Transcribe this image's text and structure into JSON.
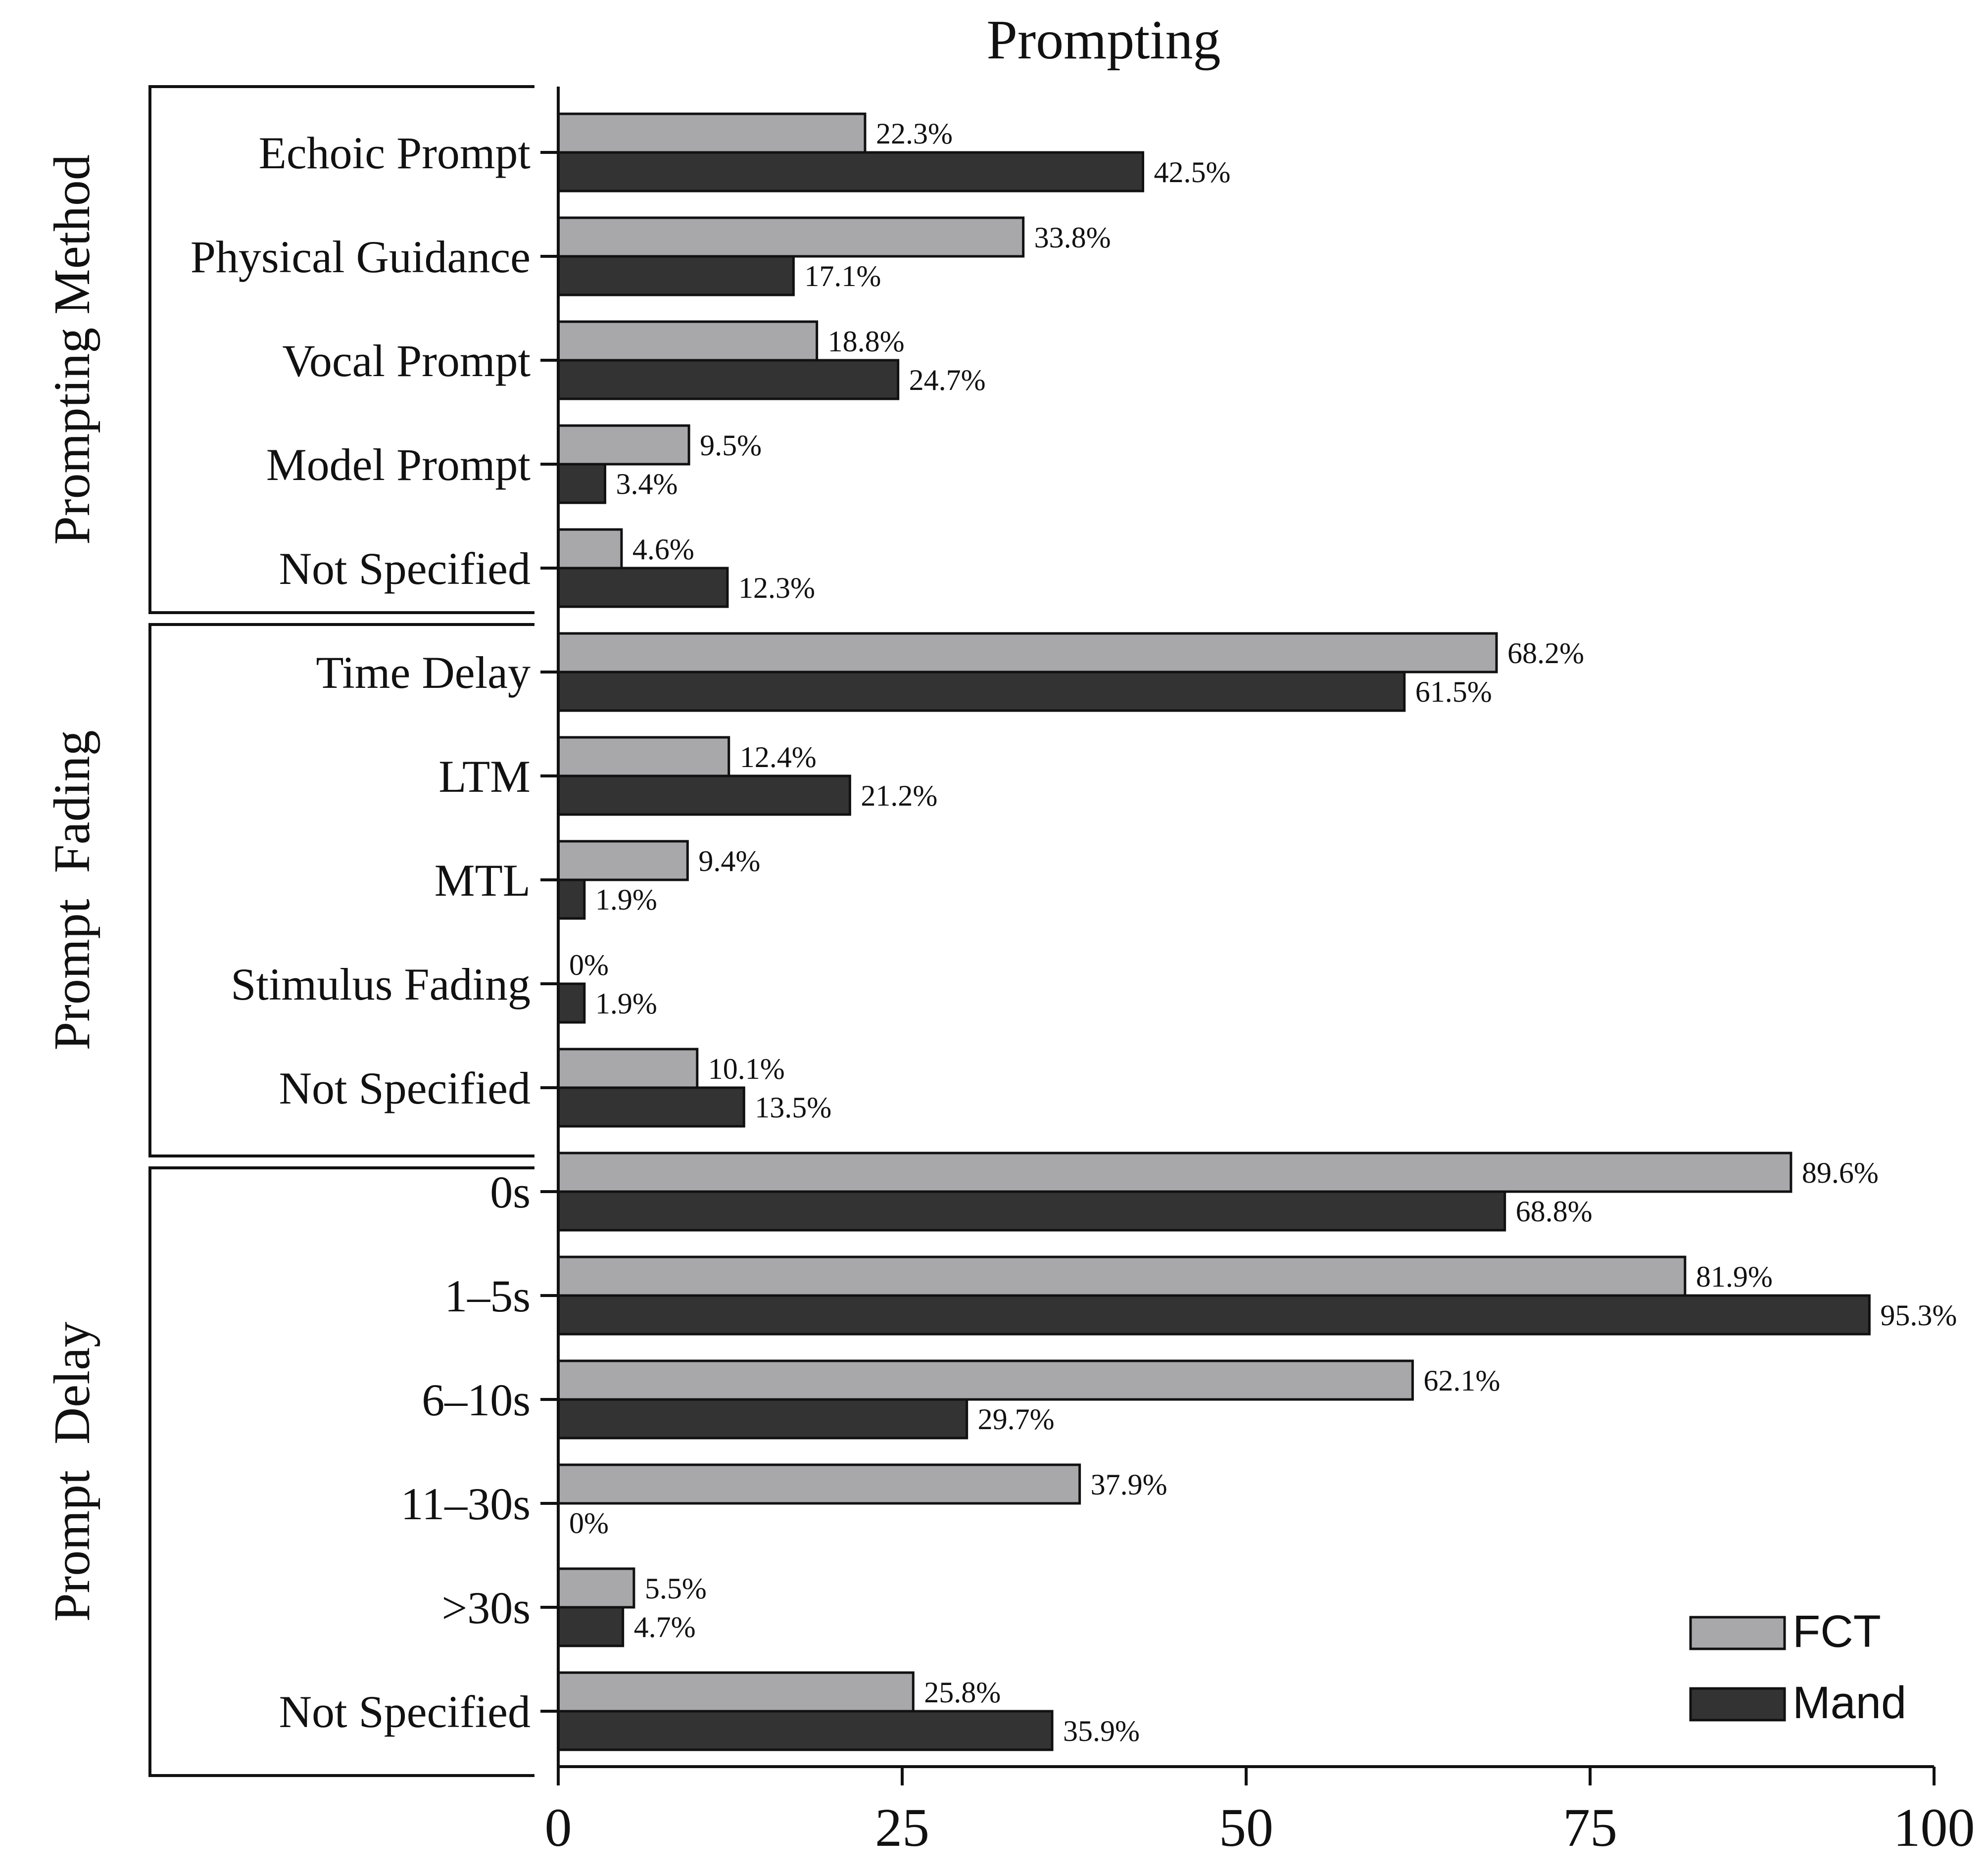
{
  "chart_data": {
    "type": "bar",
    "orientation": "horizontal",
    "title": "Prompting",
    "xlabel": "",
    "ylabel": "",
    "xlim": [
      0,
      100
    ],
    "x_ticks": [
      "0",
      "25",
      "50",
      "75",
      "100"
    ],
    "legend": {
      "position": "bottom-right",
      "entries": [
        "FCT",
        "Mand"
      ]
    },
    "colors": {
      "FCT": "#a8a8ab",
      "Mand": "#333333"
    },
    "groups": [
      {
        "name": "Prompting Method",
        "categories": [
          "Echoic Prompt",
          "Physical Guidance",
          "Vocal Prompt",
          "Model Prompt",
          "Not Specified"
        ],
        "series": [
          {
            "name": "FCT",
            "values": [
              22.3,
              33.8,
              18.8,
              9.5,
              4.6
            ],
            "labels": [
              "22.3%",
              "33.8%",
              "18.8%",
              "9.5%",
              "4.6%"
            ]
          },
          {
            "name": "Mand",
            "values": [
              42.5,
              17.1,
              24.7,
              3.4,
              12.3
            ],
            "labels": [
              "42.5%",
              "17.1%",
              "24.7%",
              "3.4%",
              "12.3%"
            ]
          }
        ]
      },
      {
        "name": "Prompt  Fading",
        "categories": [
          "Time Delay",
          "LTM",
          "MTL",
          "Stimulus Fading",
          "Not Specified"
        ],
        "series": [
          {
            "name": "FCT",
            "values": [
              68.2,
              12.4,
              9.4,
              0,
              10.1
            ],
            "labels": [
              "68.2%",
              "12.4%",
              "9.4%",
              "0%",
              "10.1%"
            ]
          },
          {
            "name": "Mand",
            "values": [
              61.5,
              21.2,
              1.9,
              1.9,
              13.5
            ],
            "labels": [
              "61.5%",
              "21.2%",
              "1.9%",
              "1.9%",
              "13.5%"
            ]
          }
        ]
      },
      {
        "name": "Prompt  Delay",
        "categories": [
          "0s",
          "1–5s",
          "6–10s",
          "11–30s",
          ">30s",
          "Not Specified"
        ],
        "series": [
          {
            "name": "FCT",
            "values": [
              89.6,
              81.9,
              62.1,
              37.9,
              5.5,
              25.8
            ],
            "labels": [
              "89.6%",
              "81.9%",
              "62.1%",
              "37.9%",
              "5.5%",
              "25.8%"
            ]
          },
          {
            "name": "Mand",
            "values": [
              68.8,
              95.3,
              29.7,
              0,
              4.7,
              35.9
            ],
            "labels": [
              "68.8%",
              "95.3%",
              "29.7%",
              "0%",
              "4.7%",
              "35.9%"
            ]
          }
        ]
      }
    ]
  }
}
